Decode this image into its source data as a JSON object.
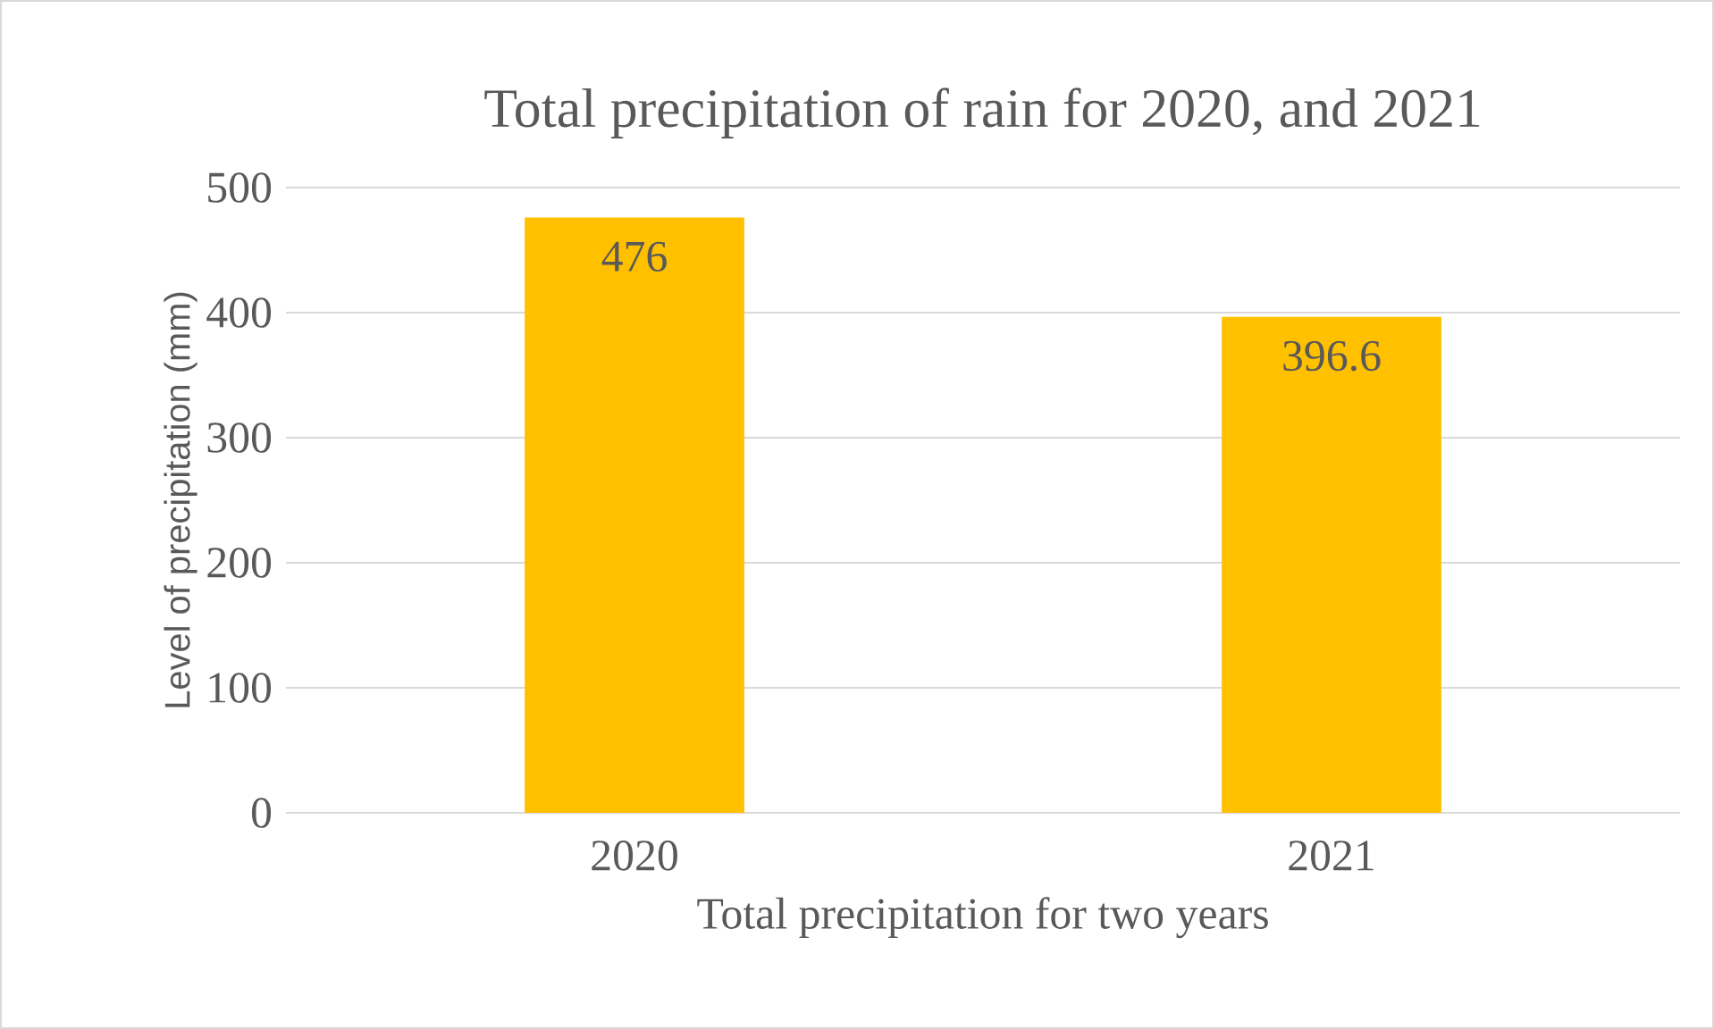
{
  "chart_data": {
    "type": "bar",
    "title": "Total precipitation of rain for 2020, and 2021",
    "xlabel": "Total precipitation for two years",
    "ylabel": "Level of precipitation (mm)",
    "categories": [
      "2020",
      "2021"
    ],
    "values": [
      476,
      396.6
    ],
    "color": "#ffc000",
    "ylim": [
      0,
      500
    ],
    "yticks": [
      0,
      100,
      200,
      300,
      400,
      500
    ],
    "grid": "y",
    "data_labels": true
  }
}
